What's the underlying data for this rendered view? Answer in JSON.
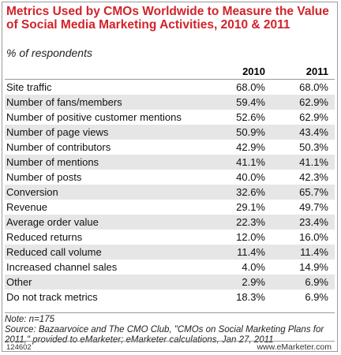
{
  "chart_data": {
    "type": "table",
    "title": "Metrics Used by CMOs Worldwide to Measure the Value of Social Media Marketing Activities, 2010 & 2011",
    "subtitle": "% of respondents",
    "columns": [
      "2010",
      "2011"
    ],
    "rows": [
      {
        "label": "Site traffic",
        "values": [
          "68.0%",
          "68.0%"
        ]
      },
      {
        "label": "Number of fans/members",
        "values": [
          "59.4%",
          "62.9%"
        ]
      },
      {
        "label": "Number of positive customer mentions",
        "values": [
          "52.6%",
          "62.9%"
        ]
      },
      {
        "label": "Number of page views",
        "values": [
          "50.9%",
          "43.4%"
        ]
      },
      {
        "label": "Number of contributors",
        "values": [
          "42.9%",
          "50.3%"
        ]
      },
      {
        "label": "Number of mentions",
        "values": [
          "41.1%",
          "41.1%"
        ]
      },
      {
        "label": "Number of posts",
        "values": [
          "40.0%",
          "42.3%"
        ]
      },
      {
        "label": "Conversion",
        "values": [
          "32.6%",
          "65.7%"
        ]
      },
      {
        "label": "Revenue",
        "values": [
          "29.1%",
          "49.7%"
        ]
      },
      {
        "label": "Average order value",
        "values": [
          "22.3%",
          "23.4%"
        ]
      },
      {
        "label": "Reduced returns",
        "values": [
          "12.0%",
          "16.0%"
        ]
      },
      {
        "label": "Reduced call volume",
        "values": [
          "11.4%",
          "11.4%"
        ]
      },
      {
        "label": "Increased channel sales",
        "values": [
          "4.0%",
          "14.9%"
        ]
      },
      {
        "label": "Other",
        "values": [
          "2.9%",
          "6.9%"
        ]
      },
      {
        "label": "Do not track metrics",
        "values": [
          "18.3%",
          "6.9%"
        ]
      }
    ],
    "note": "Note: n=175",
    "source": "Source: Bazaarvoice and The CMO Club, \"CMOs on Social Marketing Plans for 2011,\" provided to eMarketer; eMarketer calculations, Jan 27, 2011",
    "chart_id": "124602",
    "brand": "www.eMarketer.com"
  }
}
